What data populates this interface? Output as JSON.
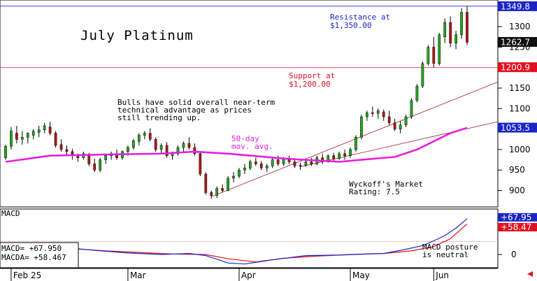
{
  "chart_data": {
    "type": "candlestick",
    "title": "July Platinum",
    "x_labels": [
      "Feb 25",
      "Mar",
      "Apr",
      "May",
      "Jun"
    ],
    "y_ticks": [
      900,
      950,
      1000,
      1050,
      1100,
      1150,
      1200,
      1250,
      1300
    ],
    "ylim": [
      860,
      1365
    ],
    "price_tags": [
      {
        "value": "1349.8",
        "color": "#1b25c8"
      },
      {
        "value": "1262.7",
        "color": "#111111"
      },
      {
        "value": "1200.9",
        "color": "#e01020"
      },
      {
        "value": "1053.5",
        "color": "#1b25c8"
      }
    ],
    "lines": {
      "resistance": 1350,
      "support": 1200
    },
    "annotations": {
      "resistance": [
        "Resistance at",
        "$1,350.00"
      ],
      "support": [
        "Support at",
        "$1,200.00"
      ],
      "bulls": [
        "Bulls have solid overall near-term",
        "technical advantage as prices",
        "still trending up."
      ],
      "ma": [
        "50-day",
        "mov. avg."
      ],
      "wyckoff": [
        "Wyckoff's Market",
        "Rating: 7.5"
      ],
      "macd_posture": [
        "MACD posture",
        "is neutral"
      ]
    },
    "macd": {
      "label": "MACD",
      "y_ticks": [
        0,
        50
      ],
      "ylim": [
        -25,
        85
      ],
      "tags": [
        {
          "value": "+67.95",
          "color": "#1b25c8"
        },
        {
          "value": "+58.47",
          "color": "#e01020"
        }
      ],
      "readout": [
        "MACD=   +67.950",
        "MACDA=  +58.467"
      ]
    },
    "series": [
      {
        "name": "price",
        "ohlc": [
          [
            980,
            1012,
            975,
            1008
          ],
          [
            1008,
            1055,
            1000,
            1045
          ],
          [
            1040,
            1058,
            1015,
            1025
          ],
          [
            1025,
            1045,
            1012,
            1030
          ],
          [
            1030,
            1042,
            1015,
            1040
          ],
          [
            1035,
            1050,
            1025,
            1045
          ],
          [
            1042,
            1058,
            1030,
            1048
          ],
          [
            1048,
            1065,
            1040,
            1058
          ],
          [
            1055,
            1068,
            1035,
            1040
          ],
          [
            1040,
            1045,
            1005,
            1010
          ],
          [
            1012,
            1025,
            995,
            1000
          ],
          [
            1000,
            1010,
            985,
            995
          ],
          [
            995,
            1002,
            975,
            985
          ],
          [
            985,
            990,
            970,
            980
          ],
          [
            980,
            995,
            975,
            990
          ],
          [
            985,
            992,
            960,
            965
          ],
          [
            965,
            978,
            945,
            950
          ],
          [
            950,
            980,
            945,
            975
          ],
          [
            975,
            990,
            965,
            985
          ],
          [
            985,
            995,
            975,
            990
          ],
          [
            990,
            1000,
            975,
            980
          ],
          [
            980,
            998,
            975,
            995
          ],
          [
            995,
            1010,
            985,
            1005
          ],
          [
            1005,
            1025,
            1000,
            1022
          ],
          [
            1020,
            1040,
            1010,
            1035
          ],
          [
            1035,
            1045,
            1025,
            1040
          ],
          [
            1040,
            1052,
            1020,
            1025
          ],
          [
            1025,
            1030,
            995,
            1000
          ],
          [
            1000,
            1015,
            990,
            1010
          ],
          [
            1010,
            1018,
            980,
            985
          ],
          [
            985,
            995,
            975,
            990
          ],
          [
            990,
            1010,
            985,
            1005
          ],
          [
            1005,
            1020,
            995,
            1015
          ],
          [
            1015,
            1030,
            1000,
            1005
          ],
          [
            1005,
            1015,
            985,
            990
          ],
          [
            990,
            995,
            935,
            940
          ],
          [
            940,
            945,
            890,
            895
          ],
          [
            895,
            900,
            880,
            888
          ],
          [
            888,
            910,
            882,
            905
          ],
          [
            905,
            915,
            895,
            900
          ],
          [
            900,
            935,
            898,
            930
          ],
          [
            930,
            945,
            920,
            935
          ],
          [
            935,
            955,
            930,
            950
          ],
          [
            950,
            965,
            940,
            955
          ],
          [
            955,
            975,
            950,
            970
          ],
          [
            970,
            980,
            960,
            965
          ],
          [
            965,
            972,
            950,
            955
          ],
          [
            955,
            965,
            945,
            960
          ],
          [
            960,
            980,
            955,
            975
          ],
          [
            975,
            985,
            960,
            965
          ],
          [
            965,
            982,
            960,
            978
          ],
          [
            975,
            985,
            965,
            970
          ],
          [
            970,
            975,
            955,
            960
          ],
          [
            960,
            968,
            950,
            962
          ],
          [
            962,
            975,
            958,
            970
          ],
          [
            970,
            980,
            960,
            965
          ],
          [
            965,
            985,
            962,
            980
          ],
          [
            980,
            990,
            965,
            970
          ],
          [
            970,
            988,
            968,
            985
          ],
          [
            985,
            992,
            972,
            978
          ],
          [
            978,
            995,
            975,
            990
          ],
          [
            990,
            1000,
            975,
            985
          ],
          [
            985,
            1005,
            980,
            1000
          ],
          [
            1000,
            1035,
            995,
            1030
          ],
          [
            1030,
            1085,
            1025,
            1080
          ],
          [
            1080,
            1095,
            1070,
            1090
          ],
          [
            1090,
            1105,
            1080,
            1088
          ],
          [
            1088,
            1100,
            1075,
            1095
          ],
          [
            1092,
            1098,
            1070,
            1080
          ],
          [
            1080,
            1095,
            1060,
            1065
          ],
          [
            1065,
            1075,
            1045,
            1050
          ],
          [
            1050,
            1070,
            1040,
            1060
          ],
          [
            1060,
            1085,
            1055,
            1080
          ],
          [
            1080,
            1125,
            1075,
            1120
          ],
          [
            1120,
            1160,
            1115,
            1155
          ],
          [
            1155,
            1215,
            1150,
            1210
          ],
          [
            1210,
            1255,
            1205,
            1250
          ],
          [
            1250,
            1275,
            1200,
            1210
          ],
          [
            1210,
            1285,
            1205,
            1280
          ],
          [
            1275,
            1320,
            1260,
            1310
          ],
          [
            1310,
            1325,
            1250,
            1260
          ],
          [
            1260,
            1290,
            1245,
            1280
          ],
          [
            1280,
            1345,
            1270,
            1335
          ],
          [
            1335,
            1350,
            1255,
            1262
          ]
        ]
      },
      {
        "name": "50-day mov. avg.",
        "values": [
          [
            0,
            970
          ],
          [
            8,
            985
          ],
          [
            18,
            988
          ],
          [
            28,
            990
          ],
          [
            34,
            995
          ],
          [
            40,
            990
          ],
          [
            50,
            978
          ],
          [
            60,
            970
          ],
          [
            64,
            975
          ],
          [
            70,
            982
          ],
          [
            74,
            1000
          ],
          [
            77,
            1020
          ],
          [
            80,
            1040
          ],
          [
            83,
            1053
          ]
        ]
      },
      {
        "name": "MACD",
        "values": [
          [
            0,
            8
          ],
          [
            5,
            12
          ],
          [
            10,
            14
          ],
          [
            16,
            8
          ],
          [
            22,
            3
          ],
          [
            28,
            0
          ],
          [
            33,
            2
          ],
          [
            36,
            -2
          ],
          [
            40,
            -16
          ],
          [
            43,
            -18
          ],
          [
            48,
            -10
          ],
          [
            54,
            -2
          ],
          [
            60,
            -1
          ],
          [
            65,
            1
          ],
          [
            68,
            2
          ],
          [
            72,
            10
          ],
          [
            75,
            17
          ],
          [
            77,
            26
          ],
          [
            79,
            36
          ],
          [
            81,
            50
          ],
          [
            83,
            68
          ]
        ]
      },
      {
        "name": "MACDA",
        "values": [
          [
            0,
            5
          ],
          [
            6,
            10
          ],
          [
            12,
            11
          ],
          [
            18,
            7
          ],
          [
            24,
            4
          ],
          [
            30,
            1
          ],
          [
            36,
            0
          ],
          [
            40,
            -8
          ],
          [
            45,
            -14
          ],
          [
            50,
            -7
          ],
          [
            56,
            -3
          ],
          [
            62,
            0
          ],
          [
            68,
            2
          ],
          [
            73,
            7
          ],
          [
            77,
            15
          ],
          [
            80,
            30
          ],
          [
            83,
            58
          ]
        ]
      }
    ]
  }
}
